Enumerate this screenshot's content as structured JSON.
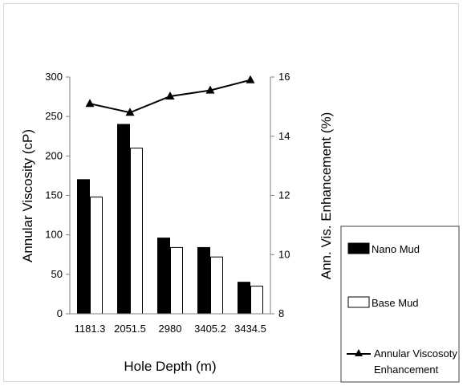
{
  "chart_data": {
    "type": "bar",
    "categories": [
      "1181.3",
      "2051.5",
      "2980",
      "3405.2",
      "3434.5"
    ],
    "series": [
      {
        "name": "Nano Mud",
        "kind": "bar",
        "axis": "left",
        "color": "#000000",
        "values": [
          170,
          240,
          96,
          84,
          40
        ]
      },
      {
        "name": "Base Mud",
        "kind": "bar",
        "axis": "left",
        "color": "#ffffff",
        "values": [
          148,
          210,
          84,
          72,
          35
        ]
      },
      {
        "name": "Annular Viscosoty Enhancement",
        "kind": "line",
        "axis": "right",
        "color": "#000000",
        "values": [
          15.1,
          14.8,
          15.35,
          15.55,
          15.9
        ]
      }
    ],
    "xlabel": "Hole Depth (m)",
    "ylabel": "Annular Viscosity (cP)",
    "y2label": "Ann. Vis. Enhancement (%)",
    "ylim": [
      0,
      300
    ],
    "yticks": [
      "0",
      "50",
      "100",
      "150",
      "200",
      "250",
      "300"
    ],
    "y2lim": [
      8,
      16
    ],
    "y2ticks": [
      "8",
      "10",
      "12",
      "14",
      "16"
    ],
    "grid": false,
    "legend_position": "right"
  }
}
